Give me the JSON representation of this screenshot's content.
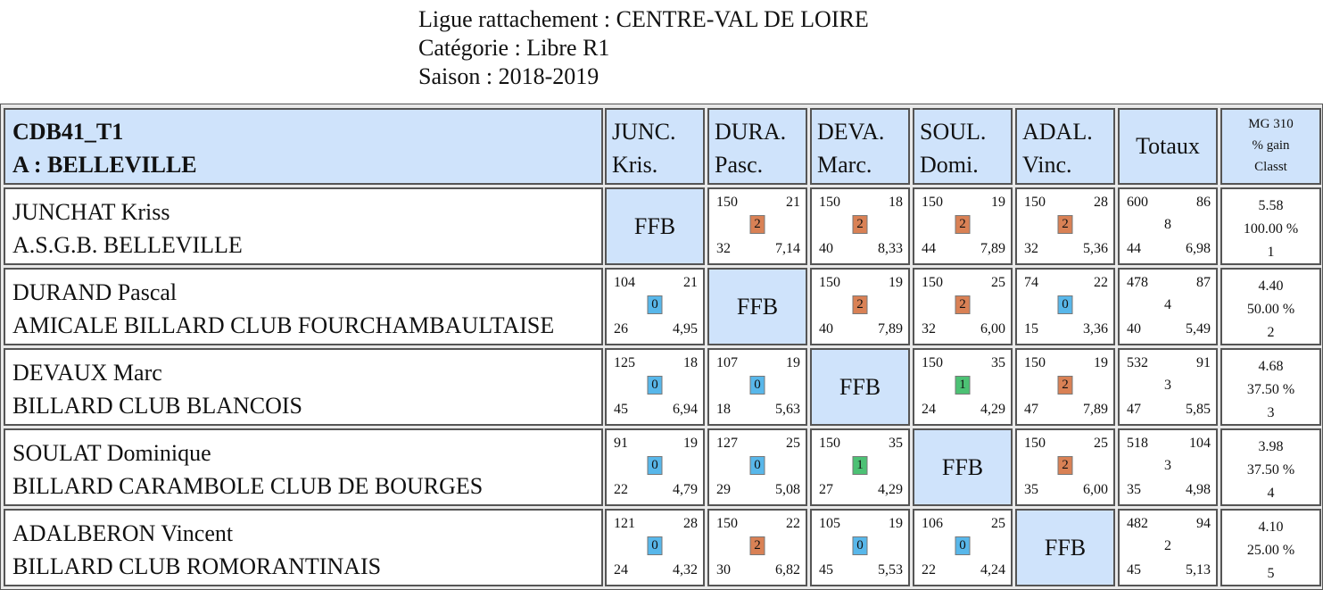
{
  "header": {
    "ligue": "Ligue rattachement : CENTRE-VAL DE LOIRE",
    "categorie": "Catégorie :  Libre R1",
    "saison": "Saison : 2018-2019"
  },
  "poule": {
    "code": "CDB41_T1",
    "lieu": "A : BELLEVILLE"
  },
  "columns": [
    {
      "l1": "JUNC.",
      "l2": "Kris."
    },
    {
      "l1": "DURA.",
      "l2": "Pasc."
    },
    {
      "l1": "DEVA.",
      "l2": "Marc."
    },
    {
      "l1": "SOUL.",
      "l2": "Domi."
    },
    {
      "l1": "ADAL.",
      "l2": "Vinc."
    }
  ],
  "totaux_label": "Totaux",
  "mg_label": {
    "l1": "MG 310",
    "l2": "% gain",
    "l3": "Classt"
  },
  "ffb_label": "FFB",
  "colors": {
    "header_blue": "#cfe3fb",
    "win": "#d98155",
    "loss": "#58b7ea",
    "draw": "#4cc174"
  },
  "players": [
    {
      "name": "JUNCHAT Kriss",
      "club": "A.S.G.B. BELLEVILLE",
      "matches": [
        null,
        {
          "pts": "150",
          "rep": "21",
          "mp": "2",
          "sb": "32",
          "moy": "7,14"
        },
        {
          "pts": "150",
          "rep": "18",
          "mp": "2",
          "sb": "40",
          "moy": "8,33"
        },
        {
          "pts": "150",
          "rep": "19",
          "mp": "2",
          "sb": "44",
          "moy": "7,89"
        },
        {
          "pts": "150",
          "rep": "28",
          "mp": "2",
          "sb": "32",
          "moy": "5,36"
        }
      ],
      "totals": {
        "pts": "600",
        "rep": "86",
        "mp": "8",
        "sb": "44",
        "moy": "6,98"
      },
      "result": {
        "mg": "5.58",
        "gain": "100.00 %",
        "classt": "1"
      }
    },
    {
      "name": "DURAND Pascal",
      "club": "AMICALE BILLARD CLUB FOURCHAMBAULTAISE",
      "matches": [
        {
          "pts": "104",
          "rep": "21",
          "mp": "0",
          "sb": "26",
          "moy": "4,95"
        },
        null,
        {
          "pts": "150",
          "rep": "19",
          "mp": "2",
          "sb": "40",
          "moy": "7,89"
        },
        {
          "pts": "150",
          "rep": "25",
          "mp": "2",
          "sb": "32",
          "moy": "6,00"
        },
        {
          "pts": "74",
          "rep": "22",
          "mp": "0",
          "sb": "15",
          "moy": "3,36"
        }
      ],
      "totals": {
        "pts": "478",
        "rep": "87",
        "mp": "4",
        "sb": "40",
        "moy": "5,49"
      },
      "result": {
        "mg": "4.40",
        "gain": "50.00 %",
        "classt": "2"
      }
    },
    {
      "name": "DEVAUX Marc",
      "club": "BILLARD CLUB BLANCOIS",
      "matches": [
        {
          "pts": "125",
          "rep": "18",
          "mp": "0",
          "sb": "45",
          "moy": "6,94"
        },
        {
          "pts": "107",
          "rep": "19",
          "mp": "0",
          "sb": "18",
          "moy": "5,63"
        },
        null,
        {
          "pts": "150",
          "rep": "35",
          "mp": "1",
          "sb": "24",
          "moy": "4,29"
        },
        {
          "pts": "150",
          "rep": "19",
          "mp": "2",
          "sb": "47",
          "moy": "7,89"
        }
      ],
      "totals": {
        "pts": "532",
        "rep": "91",
        "mp": "3",
        "sb": "47",
        "moy": "5,85"
      },
      "result": {
        "mg": "4.68",
        "gain": "37.50 %",
        "classt": "3"
      }
    },
    {
      "name": "SOULAT Dominique",
      "club": "BILLARD CARAMBOLE CLUB DE BOURGES",
      "matches": [
        {
          "pts": "91",
          "rep": "19",
          "mp": "0",
          "sb": "22",
          "moy": "4,79"
        },
        {
          "pts": "127",
          "rep": "25",
          "mp": "0",
          "sb": "29",
          "moy": "5,08"
        },
        {
          "pts": "150",
          "rep": "35",
          "mp": "1",
          "sb": "27",
          "moy": "4,29"
        },
        null,
        {
          "pts": "150",
          "rep": "25",
          "mp": "2",
          "sb": "35",
          "moy": "6,00"
        }
      ],
      "totals": {
        "pts": "518",
        "rep": "104",
        "mp": "3",
        "sb": "35",
        "moy": "4,98"
      },
      "result": {
        "mg": "3.98",
        "gain": "37.50 %",
        "classt": "4"
      }
    },
    {
      "name": "ADALBERON Vincent",
      "club": "BILLARD CLUB ROMORANTINAIS",
      "matches": [
        {
          "pts": "121",
          "rep": "28",
          "mp": "0",
          "sb": "24",
          "moy": "4,32"
        },
        {
          "pts": "150",
          "rep": "22",
          "mp": "2",
          "sb": "30",
          "moy": "6,82"
        },
        {
          "pts": "105",
          "rep": "19",
          "mp": "0",
          "sb": "45",
          "moy": "5,53"
        },
        {
          "pts": "106",
          "rep": "25",
          "mp": "0",
          "sb": "22",
          "moy": "4,24"
        },
        null
      ],
      "totals": {
        "pts": "482",
        "rep": "94",
        "mp": "2",
        "sb": "45",
        "moy": "5,13"
      },
      "result": {
        "mg": "4.10",
        "gain": "25.00 %",
        "classt": "5"
      }
    }
  ]
}
